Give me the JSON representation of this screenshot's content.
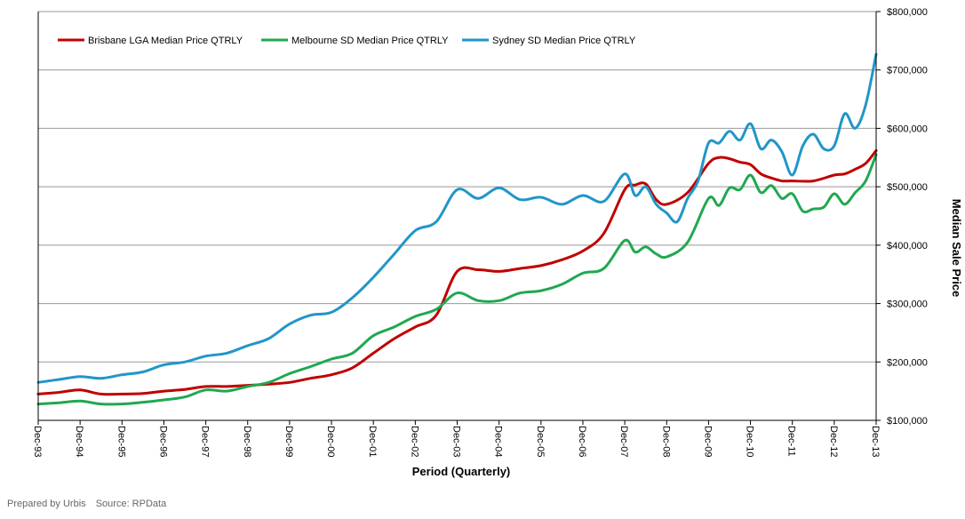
{
  "chart_data": {
    "type": "line",
    "title": "",
    "xlabel": "Period (Quarterly)",
    "ylabel": "Median Sale Price",
    "ylim": [
      100000,
      800000
    ],
    "yticks": [
      100000,
      200000,
      300000,
      400000,
      500000,
      600000,
      700000,
      800000
    ],
    "ytick_labels": [
      "$100,000",
      "$200,000",
      "$300,000",
      "$400,000",
      "$500,000",
      "$600,000",
      "$700,000",
      "$800,000"
    ],
    "xlim": [
      1993,
      2013
    ],
    "xtick_labels": [
      "Dec-93",
      "Dec-94",
      "Dec-95",
      "Dec-96",
      "Dec-97",
      "Dec-98",
      "Dec-99",
      "Dec-00",
      "Dec-01",
      "Dec-02",
      "Dec-03",
      "Dec-04",
      "Dec-05",
      "Dec-06",
      "Dec-07",
      "Dec-08",
      "Dec-09",
      "Dec-10",
      "Dec-11",
      "Dec-12",
      "Dec-13"
    ],
    "xtick_values": [
      1993,
      1994,
      1995,
      1996,
      1997,
      1998,
      1999,
      2000,
      2001,
      2002,
      2003,
      2004,
      2005,
      2006,
      2007,
      2008,
      2009,
      2010,
      2011,
      2012,
      2013
    ],
    "grid": "horizontal",
    "legend_position": "top-left",
    "series": [
      {
        "name": "Brisbane LGA Median Price QTRLY",
        "color": "#c00000",
        "x": [
          1993,
          1993.5,
          1994,
          1994.5,
          1995,
          1995.5,
          1996,
          1996.5,
          1997,
          1997.5,
          1998,
          1998.5,
          1999,
          1999.5,
          2000,
          2000.5,
          2001,
          2001.5,
          2002,
          2002.5,
          2003,
          2003.5,
          2004,
          2004.5,
          2005,
          2005.5,
          2006,
          2006.5,
          2007,
          2007.25,
          2007.5,
          2007.75,
          2008,
          2008.5,
          2009,
          2009.25,
          2009.5,
          2009.75,
          2010,
          2010.25,
          2010.5,
          2010.75,
          2011,
          2011.5,
          2012,
          2012.25,
          2012.5,
          2012.75,
          2013
        ],
        "values": [
          145000,
          148000,
          152000,
          145000,
          145000,
          146000,
          150000,
          153000,
          158000,
          158000,
          160000,
          162000,
          165000,
          172000,
          178000,
          190000,
          215000,
          240000,
          260000,
          280000,
          355000,
          358000,
          355000,
          360000,
          365000,
          375000,
          390000,
          420000,
          495000,
          503000,
          505000,
          478000,
          470000,
          490000,
          540000,
          550000,
          548000,
          542000,
          538000,
          522000,
          515000,
          510000,
          510000,
          510000,
          520000,
          522000,
          530000,
          540000,
          562000
        ]
      },
      {
        "name": "Melbourne SD Median Price QTRLY",
        "color": "#20a850",
        "x": [
          1993,
          1993.5,
          1994,
          1994.5,
          1995,
          1995.5,
          1996,
          1996.5,
          1997,
          1997.5,
          1998,
          1998.5,
          1999,
          1999.5,
          2000,
          2000.5,
          2001,
          2001.5,
          2002,
          2002.5,
          2003,
          2003.5,
          2004,
          2004.5,
          2005,
          2005.5,
          2006,
          2006.5,
          2007,
          2007.25,
          2007.5,
          2007.75,
          2008,
          2008.5,
          2009,
          2009.25,
          2009.5,
          2009.75,
          2010,
          2010.25,
          2010.5,
          2010.75,
          2011,
          2011.25,
          2011.5,
          2011.75,
          2012,
          2012.25,
          2012.5,
          2012.75,
          2013
        ],
        "values": [
          128000,
          130000,
          133000,
          128000,
          128000,
          131000,
          135000,
          140000,
          152000,
          150000,
          158000,
          165000,
          180000,
          192000,
          205000,
          215000,
          245000,
          260000,
          278000,
          290000,
          318000,
          305000,
          305000,
          318000,
          322000,
          333000,
          352000,
          360000,
          408000,
          388000,
          397000,
          385000,
          380000,
          405000,
          480000,
          468000,
          498000,
          495000,
          520000,
          490000,
          502000,
          480000,
          488000,
          458000,
          462000,
          465000,
          488000,
          470000,
          490000,
          510000,
          555000
        ]
      },
      {
        "name": "Sydney SD Median Price QTRLY",
        "color": "#2196c8",
        "x": [
          1993,
          1993.5,
          1994,
          1994.5,
          1995,
          1995.5,
          1996,
          1996.5,
          1997,
          1997.5,
          1998,
          1998.5,
          1999,
          1999.5,
          2000,
          2000.5,
          2001,
          2001.5,
          2002,
          2002.5,
          2003,
          2003.5,
          2004,
          2004.5,
          2005,
          2005.5,
          2006,
          2006.5,
          2007,
          2007.25,
          2007.5,
          2007.75,
          2008,
          2008.25,
          2008.5,
          2008.75,
          2009,
          2009.25,
          2009.5,
          2009.75,
          2010,
          2010.25,
          2010.5,
          2010.75,
          2011,
          2011.25,
          2011.5,
          2011.75,
          2012,
          2012.25,
          2012.5,
          2012.75,
          2013
        ],
        "values": [
          165000,
          170000,
          175000,
          172000,
          178000,
          183000,
          195000,
          200000,
          210000,
          215000,
          228000,
          240000,
          265000,
          280000,
          285000,
          310000,
          345000,
          385000,
          425000,
          440000,
          495000,
          480000,
          498000,
          478000,
          482000,
          470000,
          485000,
          475000,
          522000,
          485000,
          500000,
          470000,
          455000,
          440000,
          480000,
          510000,
          575000,
          575000,
          595000,
          580000,
          608000,
          565000,
          580000,
          560000,
          520000,
          570000,
          590000,
          565000,
          570000,
          625000,
          600000,
          640000,
          727000
        ]
      }
    ]
  },
  "footer": {
    "prepared_by": "Prepared by Urbis",
    "source": "Source: RPData"
  }
}
